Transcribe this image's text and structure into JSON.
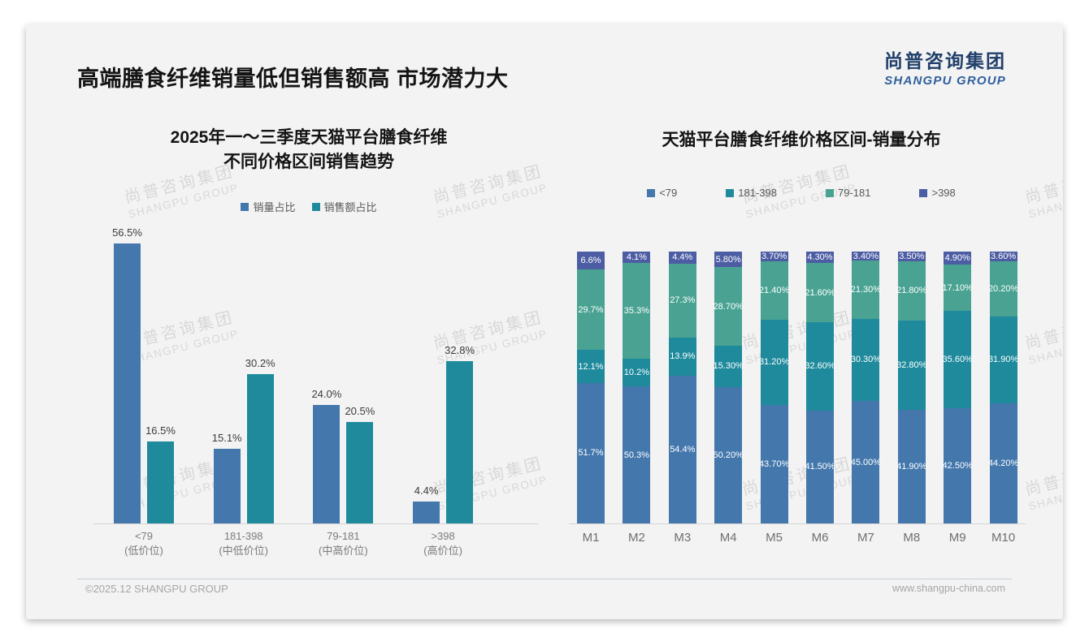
{
  "slide": {
    "title": "高端膳食纤维销量低但销售额高 市场潜力大",
    "logo": {
      "cn": "尚普咨询集团",
      "en": "SHANGPU GROUP"
    },
    "watermark": {
      "cn": "尚普咨询集团",
      "en": "SHANGPU GROUP"
    },
    "footer": {
      "left": "©2025.12 SHANGPU GROUP",
      "right": "www.shangpu-china.com"
    }
  },
  "colors": {
    "steel_blue": "#4478ad",
    "teal": "#1e8a9c",
    "green": "#4aa392",
    "indigo": "#4d5da4",
    "card_bg": "#f3f3f3",
    "logo_navy": "#21406b",
    "logo_blue": "#2e5f9e"
  },
  "chart_data": [
    {
      "type": "bar",
      "title_lines": [
        "2025年一～三季度天猫平台膳食纤维",
        "不同价格区间销售趋势"
      ],
      "categories": [
        [
          "<79",
          "(低价位)"
        ],
        [
          "181-398",
          "(中低价位)"
        ],
        [
          "79-181",
          "(中高价位)"
        ],
        [
          ">398",
          "(高价位)"
        ]
      ],
      "series": [
        {
          "name": "销量占比",
          "color": "#4478ad",
          "values": [
            56.5,
            15.1,
            24.0,
            4.4
          ],
          "labels": [
            "56.5%",
            "15.1%",
            "24.0%",
            "4.4%"
          ]
        },
        {
          "name": "销售额占比",
          "color": "#1e8a9c",
          "values": [
            16.5,
            30.2,
            20.5,
            32.8
          ],
          "labels": [
            "16.5%",
            "30.2%",
            "20.5%",
            "32.8%"
          ]
        }
      ],
      "ylim": [
        0,
        60
      ],
      "grid": false,
      "legend_position": "top",
      "value_unit": "%"
    },
    {
      "type": "stacked-bar",
      "title_lines": [
        "天猫平台膳食纤维价格区间-销量分布"
      ],
      "categories": [
        "M1",
        "M2",
        "M3",
        "M4",
        "M5",
        "M6",
        "M7",
        "M8",
        "M9",
        "M10"
      ],
      "stack_order": "bottom-to-top",
      "series": [
        {
          "name": "<79",
          "color": "#4478ad",
          "values": [
            51.7,
            50.3,
            54.4,
            50.2,
            43.7,
            41.5,
            45.0,
            41.9,
            42.5,
            44.2
          ],
          "labels": [
            "51.7%",
            "50.3%",
            "54.4%",
            "50.20%",
            "43.70%",
            "41.50%",
            "45.00%",
            "41.90%",
            "42.50%",
            "44.20%"
          ]
        },
        {
          "name": "181-398",
          "color": "#1e8a9c",
          "values": [
            12.1,
            10.2,
            13.9,
            15.3,
            31.2,
            32.6,
            30.3,
            32.8,
            35.6,
            31.9
          ],
          "labels": [
            "12.1%",
            "10.2%",
            "13.9%",
            "15.30%",
            "31.20%",
            "32.60%",
            "30.30%",
            "32.80%",
            "35.60%",
            "31.90%"
          ]
        },
        {
          "name": "79-181",
          "color": "#4aa392",
          "values": [
            29.7,
            35.3,
            27.3,
            28.7,
            21.4,
            21.6,
            21.3,
            21.8,
            17.1,
            20.2
          ],
          "labels": [
            "29.7%",
            "35.3%",
            "27.3%",
            "28.70%",
            "21.40%",
            "21.60%",
            "21.30%",
            "21.80%",
            "17.10%",
            "20.20%"
          ]
        },
        {
          "name": ">398",
          "color": "#4d5da4",
          "values": [
            6.6,
            4.1,
            4.4,
            5.8,
            3.7,
            4.3,
            3.4,
            3.5,
            4.9,
            3.6
          ],
          "labels": [
            "6.6%",
            "4.1%",
            "4.4%",
            "5.80%",
            "3.70%",
            "4.30%",
            "3.40%",
            "3.50%",
            "4.90%",
            "3.60%"
          ]
        }
      ],
      "ylim": [
        0,
        100
      ],
      "grid": false,
      "legend_position": "top",
      "value_unit": "%"
    }
  ]
}
